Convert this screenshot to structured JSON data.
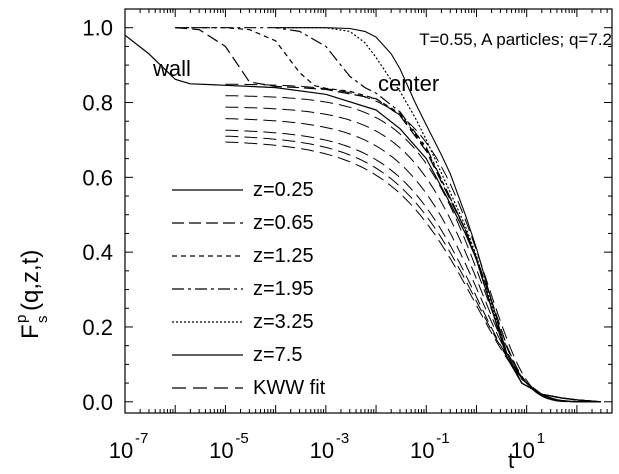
{
  "chart_data": {
    "type": "line",
    "title": "",
    "annotation": "T=0.55, A particles; q=7.2",
    "region_labels": [
      "wall",
      "center"
    ],
    "xlabel": "t",
    "ylabel_main": "F",
    "ylabel_sub": "s",
    "ylabel_sup": "p",
    "ylabel_args": "(q,z,t)",
    "xscale": "log",
    "xlim": [
      1e-07,
      500
    ],
    "ylim": [
      -0.03,
      1.05
    ],
    "x_ticks": [
      {
        "base": "10",
        "exp": "-7",
        "value": 1e-07
      },
      {
        "base": "10",
        "exp": "-5",
        "value": 1e-05
      },
      {
        "base": "10",
        "exp": "-3",
        "value": 0.001
      },
      {
        "base": "10",
        "exp": "-1",
        "value": 0.1
      },
      {
        "base": "10",
        "exp": "1",
        "value": 10
      }
    ],
    "y_ticks": [
      {
        "label": "0.0",
        "value": 0.0
      },
      {
        "label": "0.2",
        "value": 0.2
      },
      {
        "label": "0.4",
        "value": 0.4
      },
      {
        "label": "0.6",
        "value": 0.6
      },
      {
        "label": "0.8",
        "value": 0.8
      },
      {
        "label": "1.0",
        "value": 1.0
      }
    ],
    "grid": false,
    "legend_position": "left-bottom",
    "series": [
      {
        "name": "z=0.25",
        "style": "solid",
        "x": [
          1e-07,
          3e-07,
          1e-06,
          2e-06,
          5e-06,
          1e-05,
          0.0001,
          0.001,
          0.01,
          0.03,
          0.1,
          0.3,
          0.6,
          1,
          2,
          4,
          8,
          20,
          50,
          100,
          300
        ],
        "y": [
          0.98,
          0.93,
          0.862,
          0.85,
          0.848,
          0.846,
          0.84,
          0.822,
          0.78,
          0.73,
          0.65,
          0.53,
          0.45,
          0.38,
          0.25,
          0.12,
          0.05,
          0.02,
          0.01,
          0.005,
          0.0
        ]
      },
      {
        "name": "z=0.65",
        "style": "dashed",
        "x": [
          1e-06,
          3e-06,
          1e-05,
          3e-05,
          0.0001,
          0.0003,
          0.001,
          0.01,
          0.03,
          0.1,
          0.3,
          0.6,
          1,
          2,
          4,
          8,
          20,
          50,
          100,
          300
        ],
        "y": [
          1.0,
          0.995,
          0.95,
          0.855,
          0.843,
          0.84,
          0.835,
          0.81,
          0.765,
          0.67,
          0.54,
          0.46,
          0.385,
          0.27,
          0.15,
          0.06,
          0.02,
          0.01,
          0.005,
          0.0
        ]
      },
      {
        "name": "z=1.25",
        "style": "dotted",
        "x": [
          1e-06,
          1e-05,
          3e-05,
          0.0001,
          0.0003,
          0.0006,
          0.001,
          0.003,
          0.01,
          0.03,
          0.1,
          0.3,
          0.6,
          1,
          2,
          4,
          8,
          20,
          50,
          100,
          300
        ],
        "y": [
          1.0,
          1.0,
          0.995,
          0.965,
          0.88,
          0.845,
          0.838,
          0.83,
          0.81,
          0.77,
          0.675,
          0.545,
          0.46,
          0.38,
          0.25,
          0.12,
          0.05,
          0.02,
          0.01,
          0.005,
          0.0
        ]
      },
      {
        "name": "z=1.95",
        "style": "dashdot",
        "x": [
          1e-06,
          0.0001,
          0.0003,
          0.001,
          0.003,
          0.006,
          0.01,
          0.03,
          0.1,
          0.3,
          0.6,
          1,
          2,
          4,
          8,
          20,
          50,
          100,
          300
        ],
        "y": [
          1.0,
          1.0,
          0.99,
          0.95,
          0.87,
          0.84,
          0.825,
          0.775,
          0.68,
          0.545,
          0.46,
          0.38,
          0.25,
          0.12,
          0.05,
          0.02,
          0.01,
          0.005,
          0.0
        ]
      },
      {
        "name": "z=3.25",
        "style": "fine",
        "x": [
          0.0001,
          0.001,
          0.003,
          0.006,
          0.01,
          0.02,
          0.03,
          0.06,
          0.1,
          0.3,
          0.6,
          1,
          2,
          4,
          8,
          20,
          50,
          100,
          300
        ],
        "y": [
          1.0,
          1.0,
          0.99,
          0.96,
          0.92,
          0.86,
          0.83,
          0.76,
          0.7,
          0.56,
          0.47,
          0.39,
          0.26,
          0.12,
          0.05,
          0.02,
          0.01,
          0.005,
          0.0
        ]
      },
      {
        "name": "z=7.5",
        "style": "solid",
        "x": [
          0.0001,
          0.001,
          0.003,
          0.006,
          0.01,
          0.02,
          0.03,
          0.06,
          0.1,
          0.2,
          0.3,
          0.6,
          1,
          2,
          4,
          8,
          20,
          50,
          100,
          300
        ],
        "y": [
          1.0,
          1.0,
          0.998,
          0.99,
          0.975,
          0.93,
          0.89,
          0.8,
          0.74,
          0.66,
          0.61,
          0.5,
          0.41,
          0.27,
          0.13,
          0.05,
          0.02,
          0.01,
          0.005,
          0.0
        ]
      },
      {
        "name": "KWW fit",
        "style": "longdash",
        "curves": [
          {
            "A": 0.85,
            "tau": 1.7,
            "beta": 0.56
          },
          {
            "A": 0.82,
            "tau": 1.4,
            "beta": 0.52
          },
          {
            "A": 0.79,
            "tau": 1.3,
            "beta": 0.5
          },
          {
            "A": 0.76,
            "tau": 1.2,
            "beta": 0.47
          },
          {
            "A": 0.73,
            "tau": 1.1,
            "beta": 0.45
          },
          {
            "A": 0.715,
            "tau": 1.05,
            "beta": 0.43
          },
          {
            "A": 0.7,
            "tau": 1.0,
            "beta": 0.42
          }
        ],
        "x_start": 1e-05,
        "x_end": 300
      }
    ]
  }
}
